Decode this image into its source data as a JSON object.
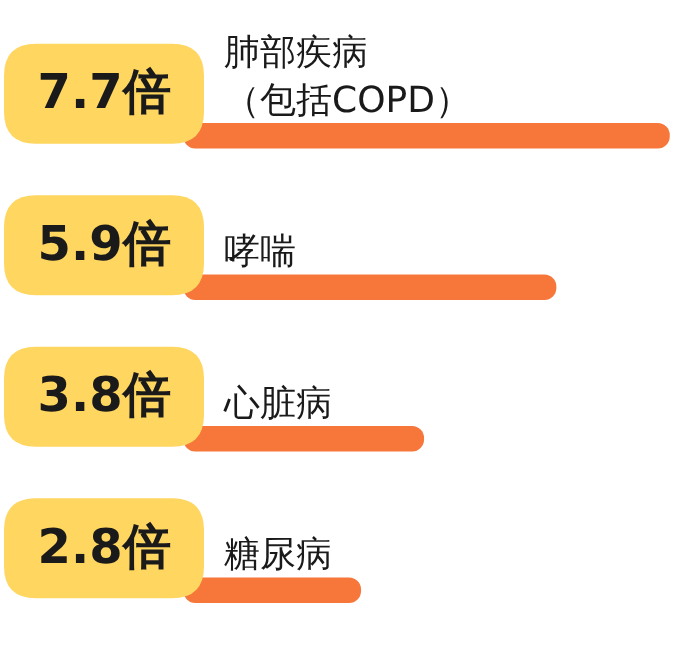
{
  "chart_data": {
    "type": "bar",
    "orientation": "horizontal",
    "categories": [
      "肺部疾病（包括COPD）",
      "哮喘",
      "心脏病",
      "糖尿病"
    ],
    "values": [
      7.7,
      5.9,
      3.8,
      2.8
    ],
    "value_labels": [
      "7.7倍",
      "5.9倍",
      "3.8倍",
      "2.8倍"
    ],
    "color": "#f7763a"
  }
}
